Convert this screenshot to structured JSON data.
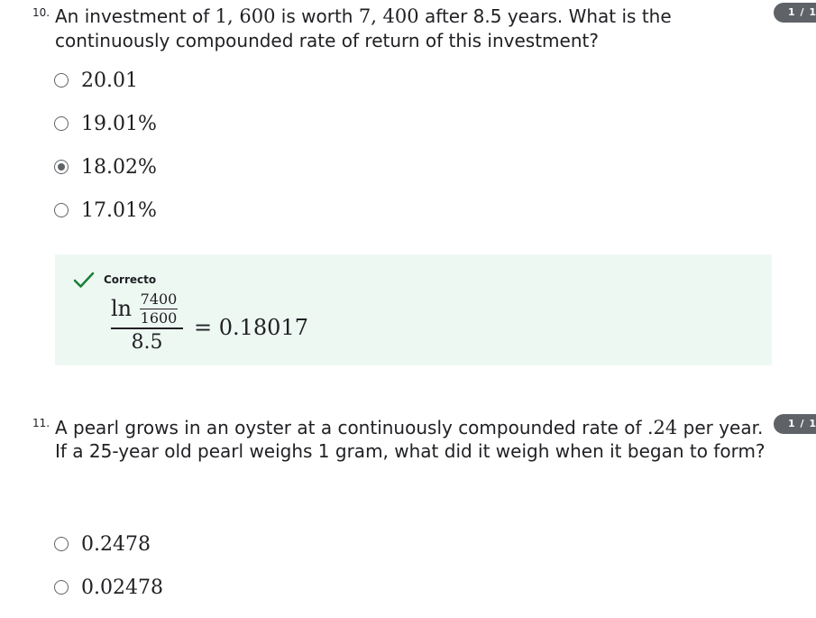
{
  "question10": {
    "number": "10.",
    "text_part1": "An investment of ",
    "amount1": "1, 600",
    "text_part2": " is worth ",
    "amount2": "7, 400",
    "text_part3": " after 8.5 years. What is the continuously compounded rate of return of this investment?",
    "score_badge": "1 / 1",
    "options": [
      {
        "label": "20.01",
        "selected": false
      },
      {
        "label": "19.01%",
        "selected": false
      },
      {
        "label": "18.02%",
        "selected": true
      },
      {
        "label": "17.01%",
        "selected": false
      }
    ],
    "feedback": {
      "status": "Correcto",
      "formula": {
        "ln": "ln",
        "numerator": "7400",
        "denominator": "1600",
        "divisor": "8.5",
        "result": "= 0.18017"
      }
    }
  },
  "question11": {
    "number": "11.",
    "text_part1": "A pearl grows in an oyster at a continuously compounded rate of ",
    "rate": ".24",
    "text_part2": " per year. If a 25-year old pearl weighs 1 gram, what did it weigh when it began to form?",
    "score_badge": "1 / 1",
    "options": [
      {
        "label": "0.2478",
        "selected": false
      },
      {
        "label": "0.02478",
        "selected": false
      }
    ]
  },
  "colors": {
    "feedback_bg": "#eef8f3",
    "check_green": "#188038",
    "badge_bg": "#5f6368"
  },
  "icons": {
    "check": "check-icon",
    "radio": "radio-icon"
  }
}
